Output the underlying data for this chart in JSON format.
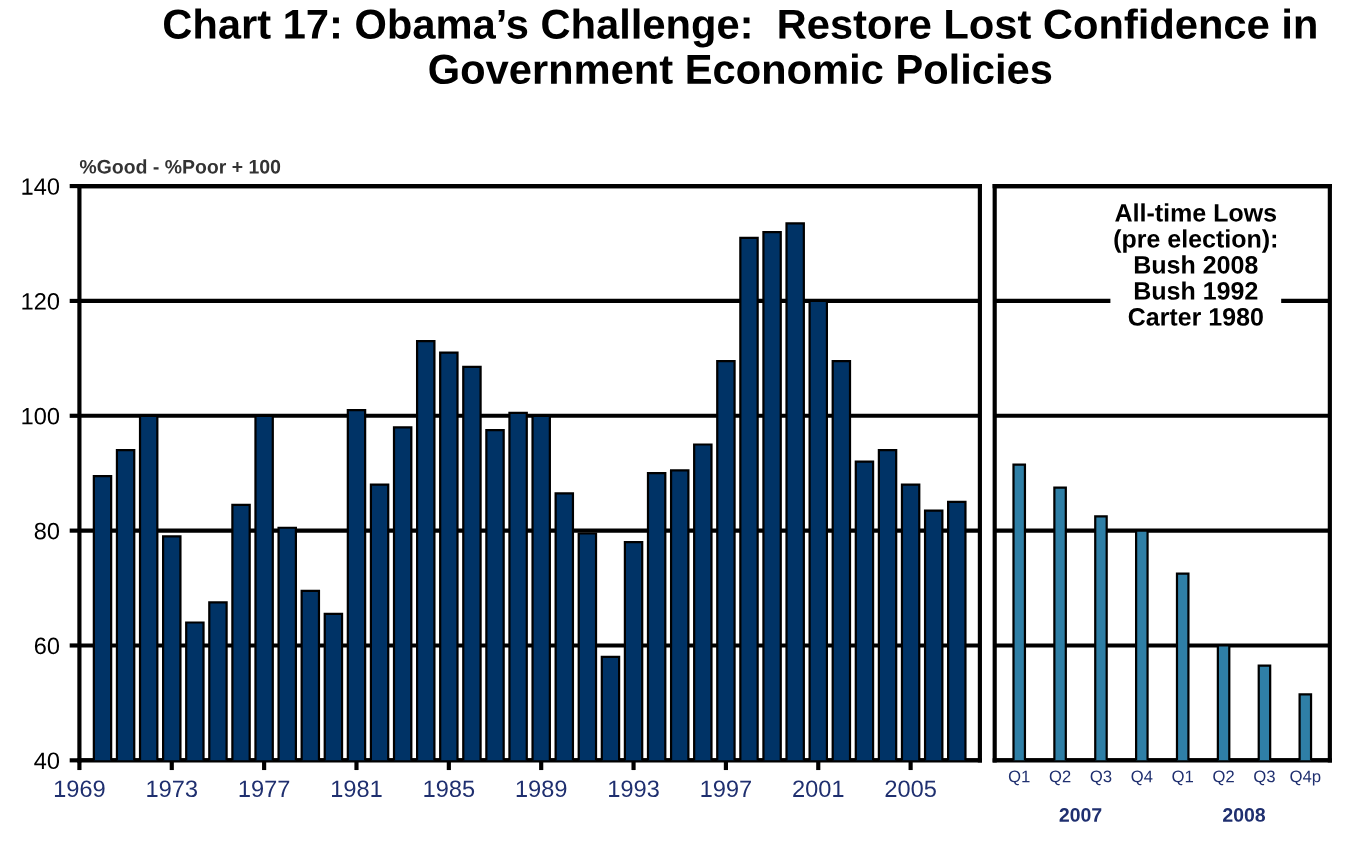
{
  "chart_data": [
    {
      "type": "bar",
      "title": "Chart 17: Obama’s Challenge:  Restore Lost Confidence in Government Economic Policies",
      "ylabel": "%Good - %Poor + 100",
      "color": "#003366",
      "x": [
        1970,
        1971,
        1972,
        1973,
        1974,
        1975,
        1976,
        1977,
        1978,
        1979,
        1980,
        1981,
        1982,
        1983,
        1984,
        1985,
        1986,
        1987,
        1988,
        1989,
        1990,
        1991,
        1992,
        1993,
        1994,
        1995,
        1996,
        1997,
        1998,
        1999,
        2000,
        2001,
        2002,
        2003,
        2004,
        2005,
        2006,
        2007
      ],
      "values": [
        89.5,
        94,
        100,
        79,
        64,
        67.5,
        84.5,
        100,
        80.5,
        69.5,
        65.5,
        101,
        88,
        98,
        113,
        111,
        108.5,
        97.5,
        100.5,
        100,
        86.5,
        79.5,
        58,
        78,
        90,
        90.5,
        95,
        109.5,
        131,
        132,
        133.5,
        120,
        109.5,
        92,
        94,
        88,
        83.5,
        85
      ],
      "xlim": [
        1969,
        2008
      ],
      "xticks": [
        1969,
        1973,
        1977,
        1981,
        1985,
        1989,
        1993,
        1997,
        2001,
        2005
      ],
      "ylim": [
        40,
        140
      ],
      "yticks": [
        40,
        60,
        80,
        100,
        120,
        140
      ],
      "grid": "y"
    },
    {
      "type": "bar",
      "color": "#2f7fa6",
      "categories": [
        "Q1",
        "Q2",
        "Q3",
        "Q4",
        "Q1",
        "Q2",
        "Q3",
        "Q4p"
      ],
      "values": [
        91.5,
        87.5,
        82.5,
        80,
        72.5,
        60,
        56.5,
        51.5
      ],
      "annotations": [
        "All-time Lows\n(pre election):\nBush 2008\nBush 1992\nCarter 1980",
        "2007",
        "2008"
      ],
      "ylim": [
        40,
        140
      ],
      "yticks": [
        40,
        60,
        80,
        100,
        120,
        140
      ],
      "grid": "y",
      "tick_labels": "x"
    }
  ]
}
